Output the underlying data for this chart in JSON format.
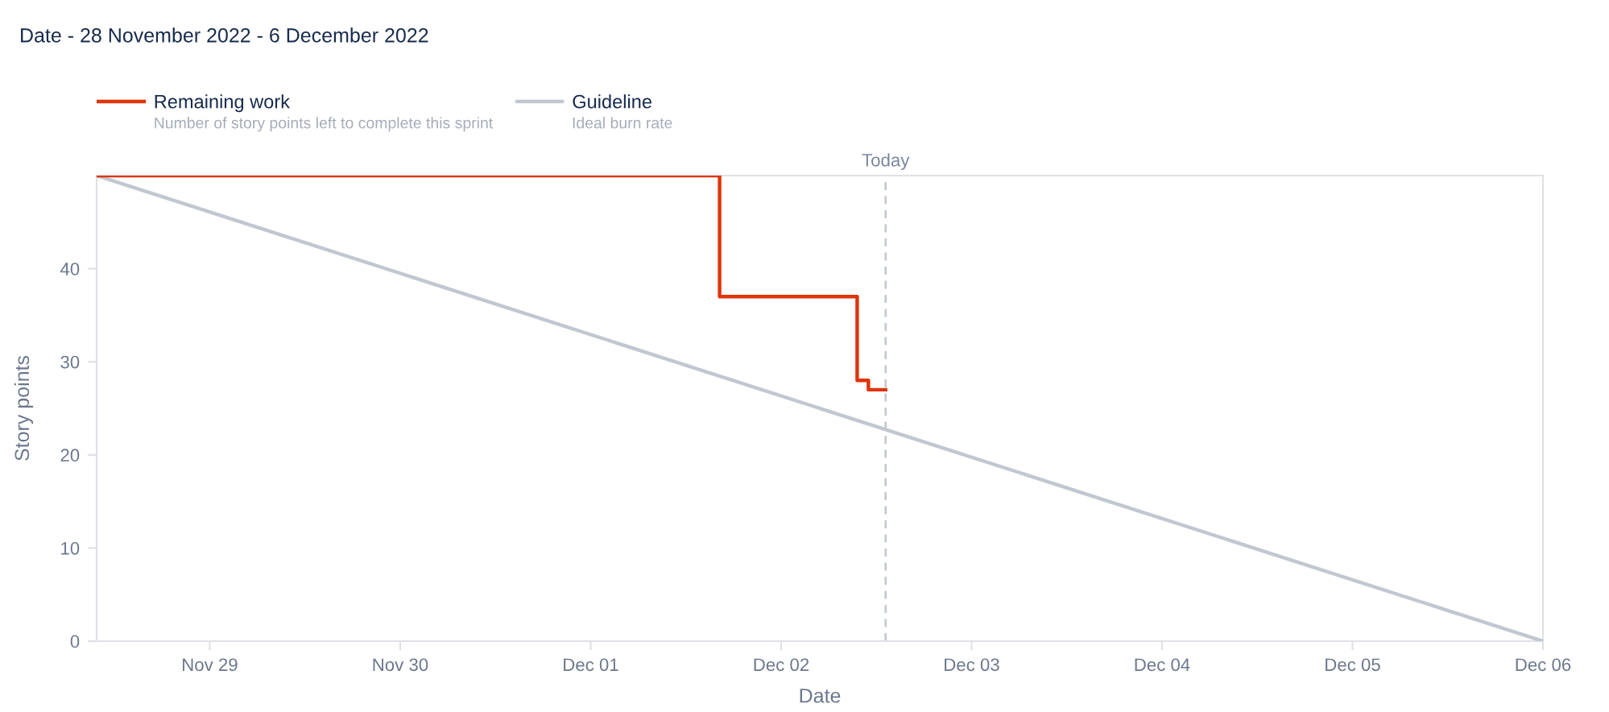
{
  "chart_data": {
    "type": "line",
    "title": "Date - 28 November 2022 - 6 December 2022",
    "xlabel": "Date",
    "ylabel": "Story points",
    "series": [
      {
        "name": "Remaining work",
        "type": "step",
        "color": "#de350b",
        "x": [
          "2022-11-28T09:45",
          "2022-12-01T16:15",
          "2022-12-02T09:35",
          "2022-12-02T11:00",
          "2022-12-02T13:10"
        ],
        "values": [
          50,
          37,
          28,
          27,
          27
        ]
      },
      {
        "name": "Guideline",
        "color": "#c1c7d0",
        "x": [
          "2022-11-28T09:45",
          "2022-12-06"
        ],
        "values": [
          50,
          0
        ]
      }
    ],
    "xlim": [
      "2022-11-28T09:45",
      "2022-12-06"
    ],
    "ylim": [
      0,
      50
    ],
    "yticks": [
      0,
      10,
      20,
      30,
      40
    ],
    "xticks": [
      {
        "value": "2022-11-29",
        "label": "Nov 29"
      },
      {
        "value": "2022-11-30",
        "label": "Nov 30"
      },
      {
        "value": "2022-12-01",
        "label": "Dec 01"
      },
      {
        "value": "2022-12-02",
        "label": "Dec 02"
      },
      {
        "value": "2022-12-03",
        "label": "Dec 03"
      },
      {
        "value": "2022-12-04",
        "label": "Dec 04"
      },
      {
        "value": "2022-12-05",
        "label": "Dec 05"
      },
      {
        "value": "2022-12-06",
        "label": "Dec 06"
      }
    ],
    "ref_lines": [
      {
        "axis": "x",
        "value": "2022-12-02T13:10",
        "label": "Today",
        "color": "#c1c7d0",
        "line_style": "dashed"
      }
    ],
    "legend": "top left",
    "annotations": [
      "Number of story points left to complete this sprint",
      "Ideal burn rate"
    ]
  }
}
